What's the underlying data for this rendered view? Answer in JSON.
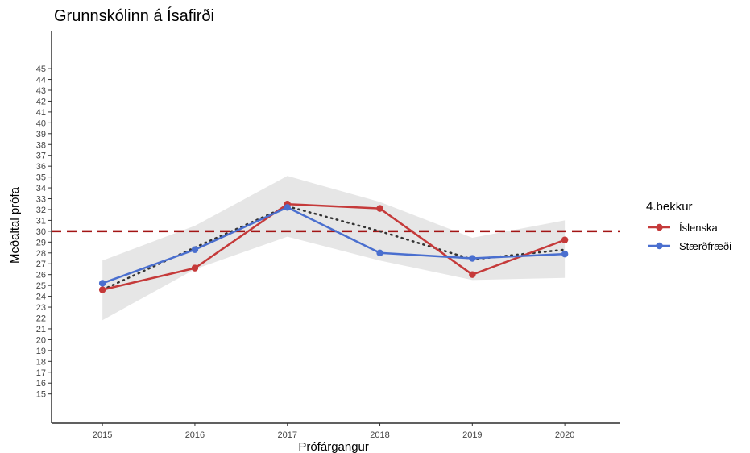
{
  "chart_data": {
    "type": "line",
    "title": "Grunnskólinn á Ísafirði",
    "xlabel": "Prófárgangur",
    "ylabel": "Meðaltal prófa",
    "x": [
      2015,
      2016,
      2017,
      2018,
      2019,
      2020
    ],
    "yticks": [
      15,
      16,
      17,
      18,
      19,
      20,
      21,
      22,
      23,
      24,
      25,
      26,
      27,
      28,
      29,
      30,
      31,
      32,
      33,
      34,
      35,
      36,
      37,
      38,
      39,
      40,
      41,
      42,
      43,
      44,
      45
    ],
    "ylim": [
      12.3,
      48.5
    ],
    "xlim": [
      2014.45,
      2020.6
    ],
    "series": [
      {
        "name": "Íslenska",
        "color": "#c53a3a",
        "values": [
          24.6,
          26.6,
          32.5,
          32.1,
          26.0,
          29.2
        ]
      },
      {
        "name": "Stærðfræði",
        "color": "#4a6fcf",
        "values": [
          25.2,
          28.3,
          32.2,
          28.0,
          27.5,
          27.9
        ]
      }
    ],
    "trend": {
      "style": "dotted",
      "color": "#333333",
      "values": [
        24.6,
        28.5,
        32.3,
        30.0,
        27.4,
        28.3
      ]
    },
    "confidence_band": {
      "color": "#e6e6e6",
      "lower": [
        21.8,
        26.5,
        29.5,
        27.3,
        25.5,
        25.7
      ],
      "upper": [
        27.3,
        30.5,
        35.1,
        32.7,
        29.4,
        31.0
      ]
    },
    "reference_line": {
      "y": 30,
      "color": "#a31515",
      "style": "dashed"
    },
    "legend": {
      "title": "4.bekkur",
      "placement": "right"
    },
    "grid": false
  }
}
